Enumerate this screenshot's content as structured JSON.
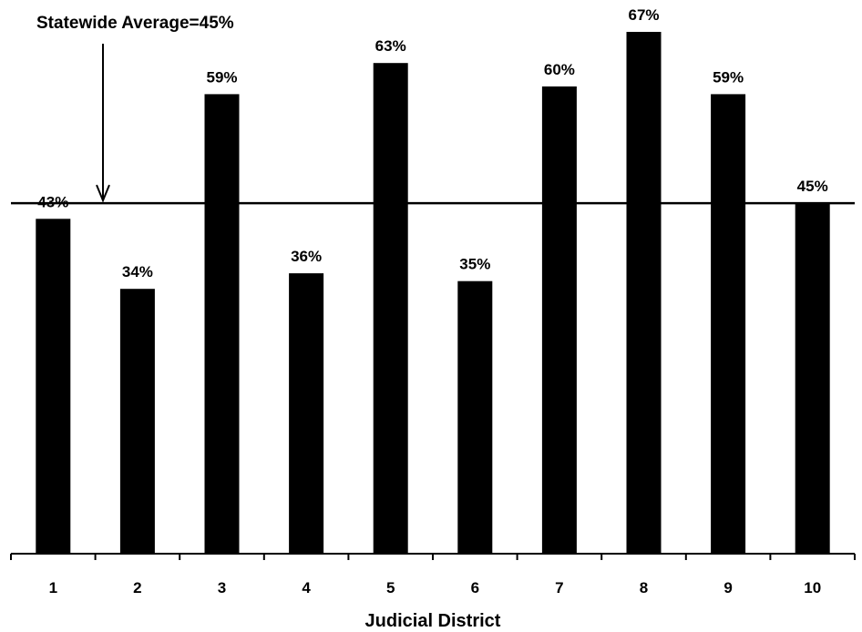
{
  "chart_data": {
    "type": "bar",
    "title": "",
    "xlabel": "Judicial District",
    "ylabel": "",
    "categories": [
      "1",
      "2",
      "3",
      "4",
      "5",
      "6",
      "7",
      "8",
      "9",
      "10"
    ],
    "values": [
      43,
      34,
      59,
      36,
      63,
      35,
      60,
      67,
      59,
      45
    ],
    "data_labels": [
      "43%",
      "34%",
      "59%",
      "36%",
      "63%",
      "35%",
      "60%",
      "67%",
      "59%",
      "45%"
    ],
    "ylim": [
      0,
      67
    ],
    "grid": false,
    "bar_color": "#000000",
    "reference_line": {
      "value": 45,
      "label": "Statewide Average=45%"
    }
  }
}
